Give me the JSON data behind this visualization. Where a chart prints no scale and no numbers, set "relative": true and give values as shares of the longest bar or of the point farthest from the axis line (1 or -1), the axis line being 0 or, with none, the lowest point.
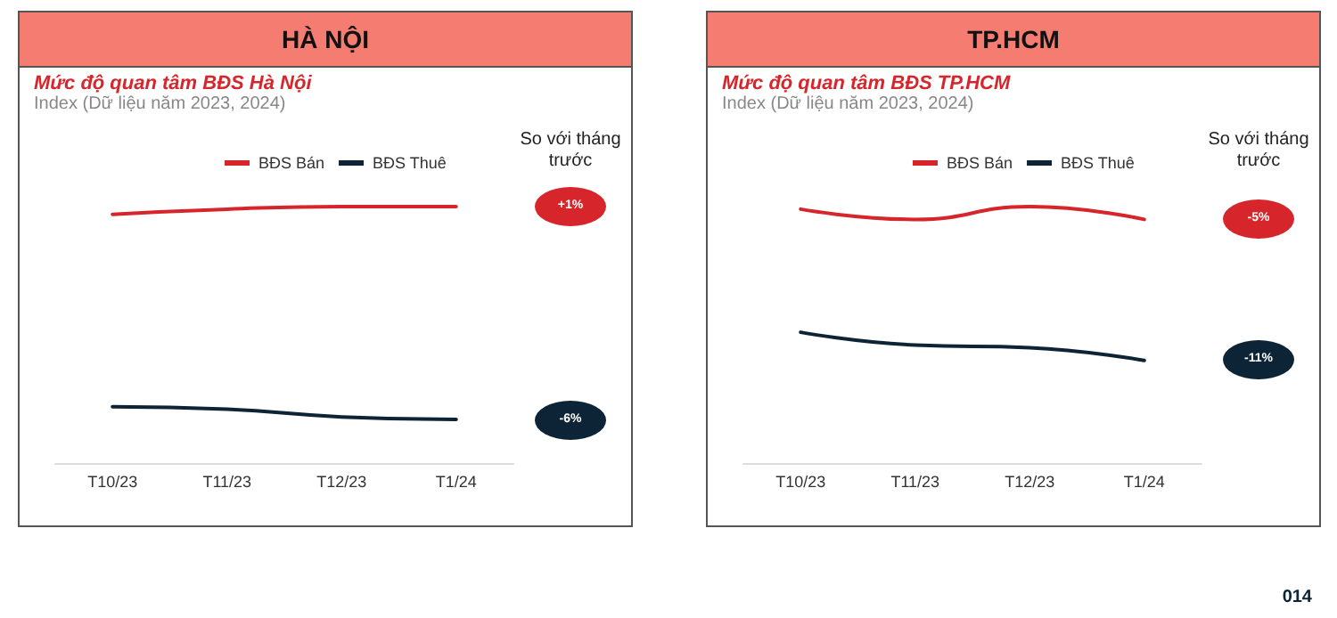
{
  "chart_data": [
    {
      "type": "line",
      "title": "HÀ NỘI",
      "subtitle": "Mức độ quan tâm BĐS Hà Nội",
      "relative": true,
      "legend": "top",
      "marker": "none",
      "grid": false,
      "annotations": [
        "Index (Dữ liệu năm 2023, 2024)",
        "So với tháng trước",
        "+1%",
        "-6%"
      ],
      "categories": [
        "T10/23",
        "T11/23",
        "T12/23",
        "T1/24"
      ],
      "series": [
        {
          "name": "BĐS Bán",
          "color": "#d7262b",
          "values": [
            0.97,
            0.99,
            1.0,
            1
          ]
        },
        {
          "name": "BĐS Thuê",
          "color": "#0d2436",
          "values": [
            0.22,
            0.21,
            0.18,
            0.17
          ]
        }
      ]
    },
    {
      "type": "line",
      "title": "TP.HCM",
      "subtitle": "Mức độ quan tâm BĐS TP.HCM",
      "relative": true,
      "legend": "top",
      "marker": "none",
      "grid": false,
      "annotations": [
        "Index (Dữ liệu năm 2023, 2024)",
        "So với tháng trước",
        "-5%",
        "-11%",
        "014"
      ],
      "categories": [
        "T10/23",
        "T11/23",
        "T12/23",
        "T1/24"
      ],
      "series": [
        {
          "name": "BĐS Bán",
          "color": "#d7262b",
          "values": [
            0.99,
            0.95,
            1,
            0.95
          ]
        },
        {
          "name": "BĐS Thuê",
          "color": "#0d2436",
          "values": [
            0.51,
            0.46,
            0.45,
            0.4
          ]
        }
      ]
    }
  ]
}
